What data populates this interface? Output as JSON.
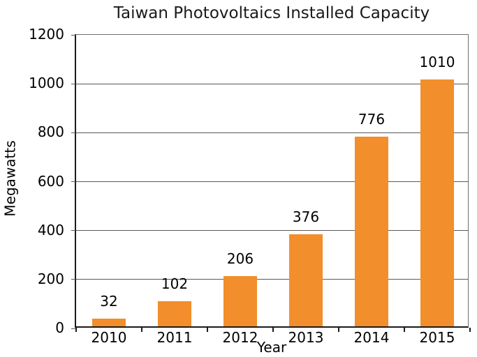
{
  "title": "Taiwan Photovoltaics Installed Capacity",
  "axis": {
    "xlabel": "Year",
    "ylabel": "Megawatts"
  },
  "colors": {
    "bar": "#F28E2B",
    "grid": "#595959",
    "axis_spine": "#1a1a1a",
    "text": "#000000",
    "background": "#ffffff"
  },
  "chart_data": {
    "type": "bar",
    "categories": [
      "2010",
      "2011",
      "2012",
      "2013",
      "2014",
      "2015"
    ],
    "values": [
      32,
      102,
      206,
      376,
      776,
      1010
    ],
    "value_labels": [
      "32",
      "102",
      "206",
      "376",
      "776",
      "1010"
    ],
    "title": "Taiwan Photovoltaics Installed Capacity",
    "xlabel": "Year",
    "ylabel": "Megawatts",
    "ylim": [
      0,
      1200
    ],
    "yticks": [
      0,
      200,
      400,
      600,
      800,
      1000,
      1200
    ],
    "grid": true,
    "legend": false,
    "bar_color": "#F28E2B"
  }
}
